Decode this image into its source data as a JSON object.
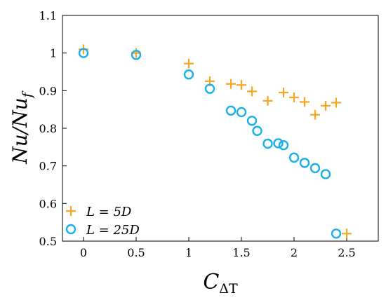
{
  "chart_data": {
    "type": "scatter",
    "title": "",
    "xlabel": "C_ΔT",
    "xlabel_main": "C",
    "xlabel_sub": "ΔT",
    "ylabel": "Nu/Nu_f",
    "ylabel_main": "Nu/Nu",
    "ylabel_sub": "f",
    "xlim": [
      -0.2,
      2.8
    ],
    "ylim": [
      0.5,
      1.1
    ],
    "xticks": [
      0,
      0.5,
      1,
      1.5,
      2,
      2.5
    ],
    "xtick_labels": [
      "0",
      "0.5",
      "1",
      "1.5",
      "2",
      "2.5"
    ],
    "yticks": [
      0.5,
      0.6,
      0.7,
      0.8,
      0.9,
      1.0,
      1.1
    ],
    "ytick_labels": [
      "0.5",
      "0.6",
      "0.7",
      "0.8",
      "0.9",
      "1",
      "1.1"
    ],
    "grid": false,
    "legend_position": "bottom-left",
    "series": [
      {
        "name": "L = 5D",
        "marker": "plus",
        "color": "#f5a623",
        "x": [
          0,
          0.5,
          1,
          1.2,
          1.4,
          1.5,
          1.6,
          1.75,
          1.9,
          2.0,
          2.1,
          2.2,
          2.3,
          2.4,
          2.5
        ],
        "y": [
          1.01,
          1.0,
          0.972,
          0.925,
          0.918,
          0.915,
          0.898,
          0.873,
          0.895,
          0.882,
          0.87,
          0.836,
          0.86,
          0.868,
          0.52
        ]
      },
      {
        "name": "L = 25D",
        "marker": "circle",
        "color": "#1ab0e8",
        "x": [
          0,
          0.5,
          1,
          1.2,
          1.4,
          1.5,
          1.6,
          1.65,
          1.75,
          1.85,
          1.9,
          2.0,
          2.1,
          2.2,
          2.3,
          2.4
        ],
        "y": [
          1.0,
          0.995,
          0.943,
          0.905,
          0.847,
          0.843,
          0.82,
          0.793,
          0.759,
          0.76,
          0.755,
          0.722,
          0.708,
          0.694,
          0.678,
          0.52
        ]
      }
    ]
  }
}
